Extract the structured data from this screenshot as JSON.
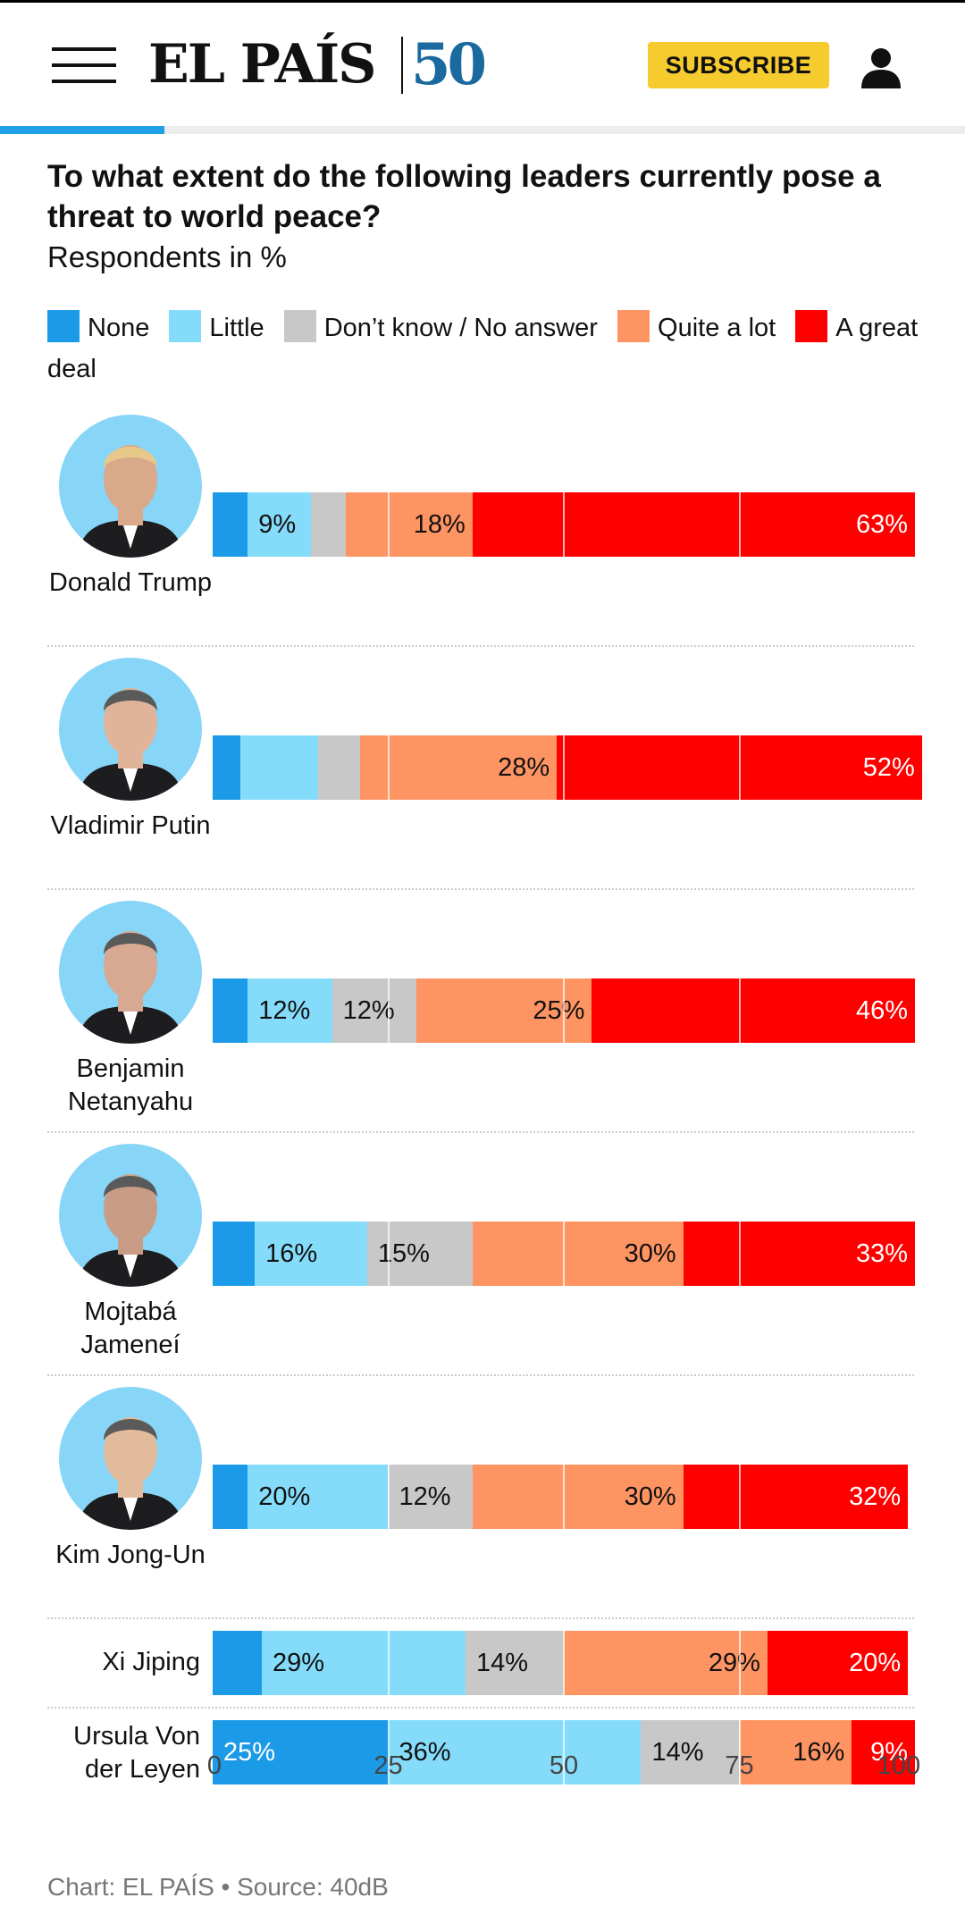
{
  "header": {
    "logo_text": "EL PAÍS",
    "logo_anniversary": "50",
    "subscribe_label": "SUBSCRIBE",
    "reading_progress": 0.17
  },
  "chart_data": {
    "type": "bar",
    "orientation": "horizontal",
    "stacked": true,
    "title": "To what extent do the following leaders currently pose a threat to world peace?",
    "subtitle": "Respondents in %",
    "xlim": [
      0,
      100
    ],
    "x_ticks": [
      "0",
      "25",
      "50",
      "75",
      "100"
    ],
    "legend": [
      "None",
      "Little",
      "Don’t know / No answer",
      "Quite a lot",
      "A great deal"
    ],
    "colors": {
      "none": "#1b9ae8",
      "little": "#84dcfa",
      "dont_know": "#c8c8c8",
      "quite_a_lot": "#ff9463",
      "great_deal": "#ff0000"
    },
    "rows": [
      {
        "leader": "Donald Trump",
        "values": [
          5,
          9,
          5,
          18,
          63
        ],
        "labels": [
          "",
          "9%",
          "",
          "18%",
          "63%"
        ]
      },
      {
        "leader": "Vladimir Putin",
        "values": [
          4,
          11,
          6,
          28,
          52
        ],
        "labels": [
          "",
          "",
          "",
          "28%",
          "52%"
        ]
      },
      {
        "leader": "Benjamin Netanyahu",
        "values": [
          5,
          12,
          12,
          25,
          46
        ],
        "labels": [
          "",
          "12%",
          "12%",
          "25%",
          "46%"
        ]
      },
      {
        "leader": "Mojtabá Jameneí",
        "values": [
          6,
          16,
          15,
          30,
          33
        ],
        "labels": [
          "",
          "16%",
          "15%",
          "30%",
          "33%"
        ]
      },
      {
        "leader": "Kim Jong-Un",
        "values": [
          5,
          20,
          12,
          30,
          32
        ],
        "labels": [
          "",
          "20%",
          "12%",
          "30%",
          "32%"
        ]
      },
      {
        "leader": "Xi Jiping",
        "values": [
          7,
          29,
          14,
          29,
          20
        ],
        "labels": [
          "",
          "29%",
          "14%",
          "29%",
          "20%"
        ]
      },
      {
        "leader": "Ursula Von der Leyen",
        "values": [
          25,
          36,
          14,
          16,
          9
        ],
        "labels": [
          "25%",
          "36%",
          "14%",
          "16%",
          "9%"
        ]
      }
    ],
    "source": "Chart: EL PAÍS • Source: 40dB"
  }
}
